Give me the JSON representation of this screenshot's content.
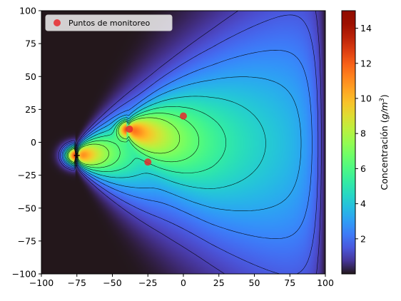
{
  "chart_data": {
    "type": "heatmap",
    "title": "",
    "xlabel": "",
    "ylabel": "",
    "xlim": [
      -100,
      100
    ],
    "ylim": [
      -100,
      100
    ],
    "x_ticks": [
      -100,
      -75,
      -50,
      -25,
      0,
      25,
      50,
      75,
      100
    ],
    "y_ticks": [
      -100,
      -75,
      -50,
      -25,
      0,
      25,
      50,
      75,
      100
    ],
    "grid": false,
    "colormap": "turbo",
    "colorbar": {
      "label": "Concentración (g/m³)",
      "label_prefix": "Concentración (",
      "label_unit": "g/m",
      "label_exp": "3",
      "label_suffix": ")",
      "range": [
        0,
        15
      ],
      "ticks": [
        2,
        4,
        6,
        8,
        10,
        12,
        14
      ]
    },
    "sources": [
      {
        "x": -75,
        "y": -10,
        "strength": 14.5,
        "spread_x": 5,
        "spread_y": 4
      },
      {
        "x": -39,
        "y": 10,
        "strength": 9.5,
        "spread_x": 4,
        "spread_y": 3.5
      }
    ],
    "source_marker": {
      "x": -75,
      "y": -10
    },
    "contour_levels": [
      1,
      1.6,
      2.4,
      3.2,
      4.2,
      5.2,
      6.2,
      7.2
    ],
    "series": [
      {
        "name": "Puntos de monitoreo",
        "type": "scatter",
        "color": "#e8282d",
        "points": [
          {
            "x": -38,
            "y": 10
          },
          {
            "x": 0,
            "y": 20
          },
          {
            "x": -25,
            "y": -15
          }
        ]
      }
    ],
    "legend": {
      "placement": "top-left",
      "entries": [
        "Puntos de monitoreo"
      ]
    }
  }
}
